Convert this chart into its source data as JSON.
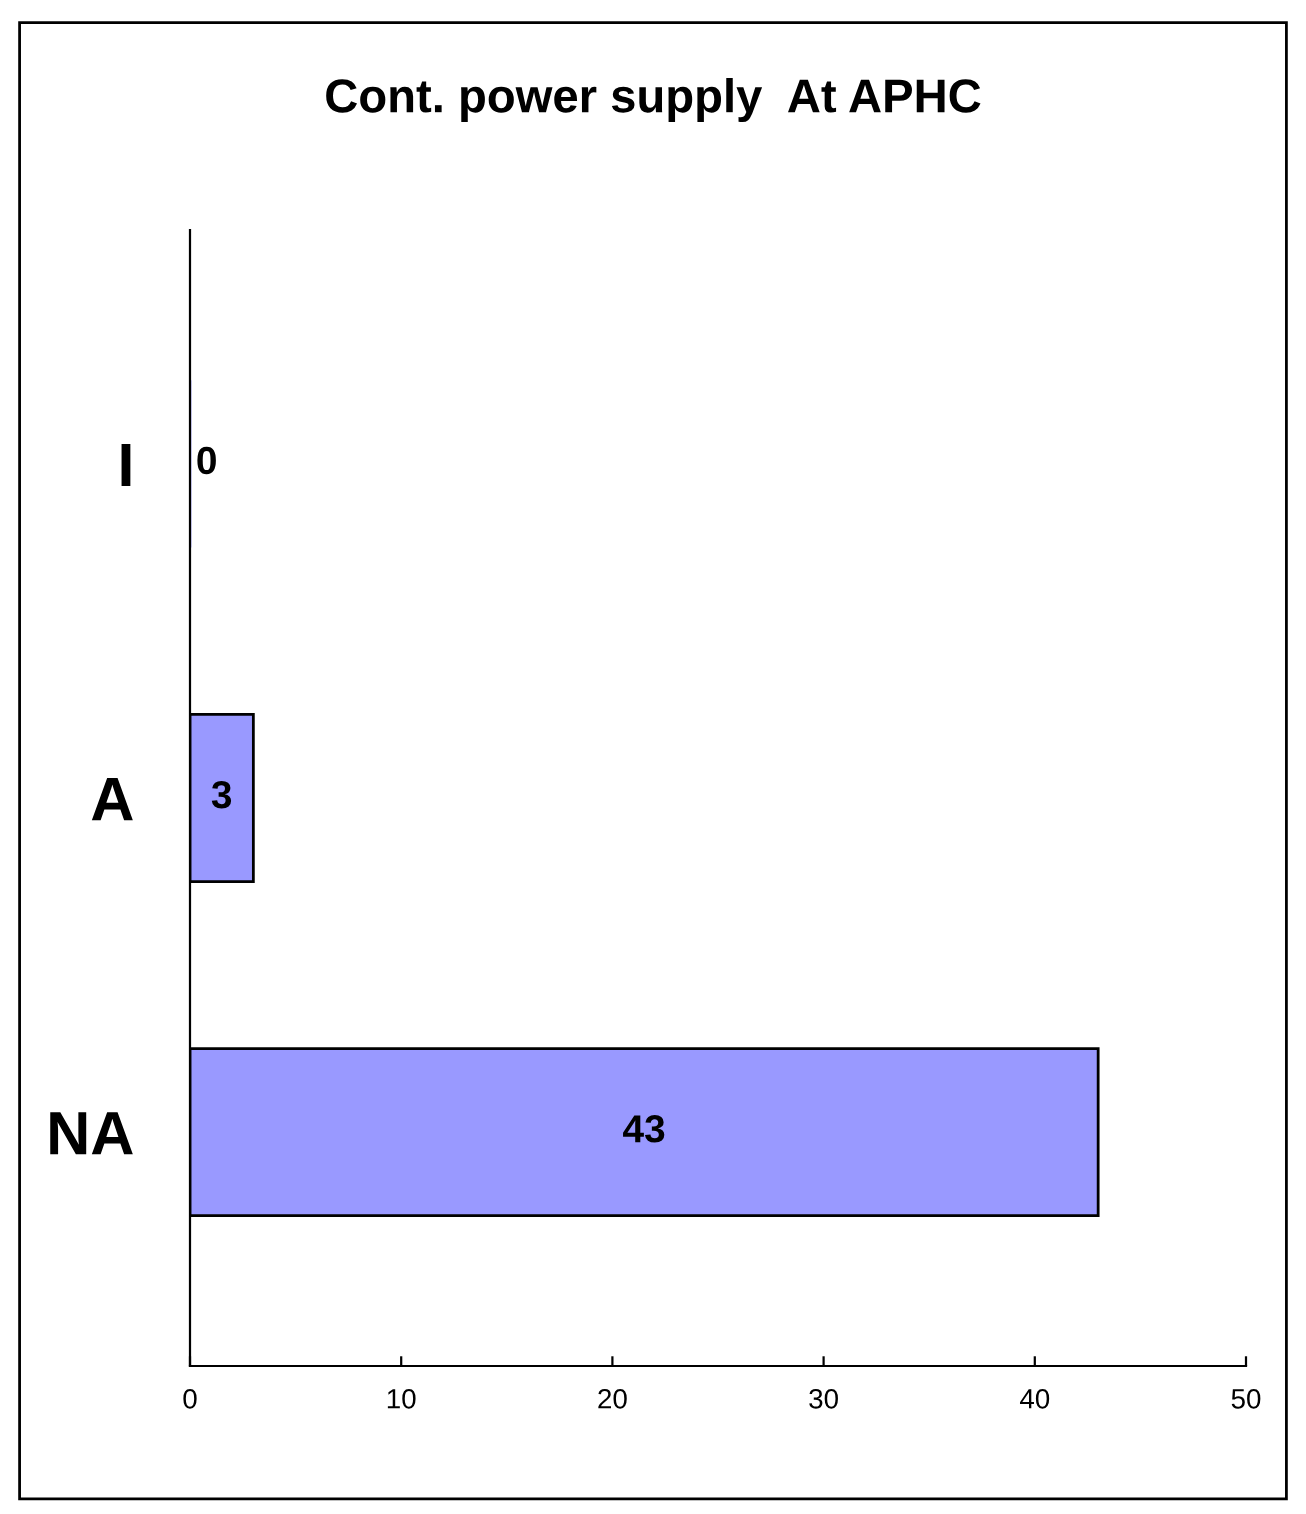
{
  "chart_data": {
    "type": "bar",
    "orientation": "horizontal",
    "title": "Cont. power supply  At APHC",
    "categories": [
      "I",
      "A",
      "NA"
    ],
    "values": [
      0,
      3,
      43
    ],
    "color": "#9999ff",
    "xlim": [
      0,
      50
    ],
    "xticks": [
      0,
      10,
      20,
      30,
      40,
      50
    ],
    "data_labels": true,
    "grid": false,
    "legend": false
  }
}
